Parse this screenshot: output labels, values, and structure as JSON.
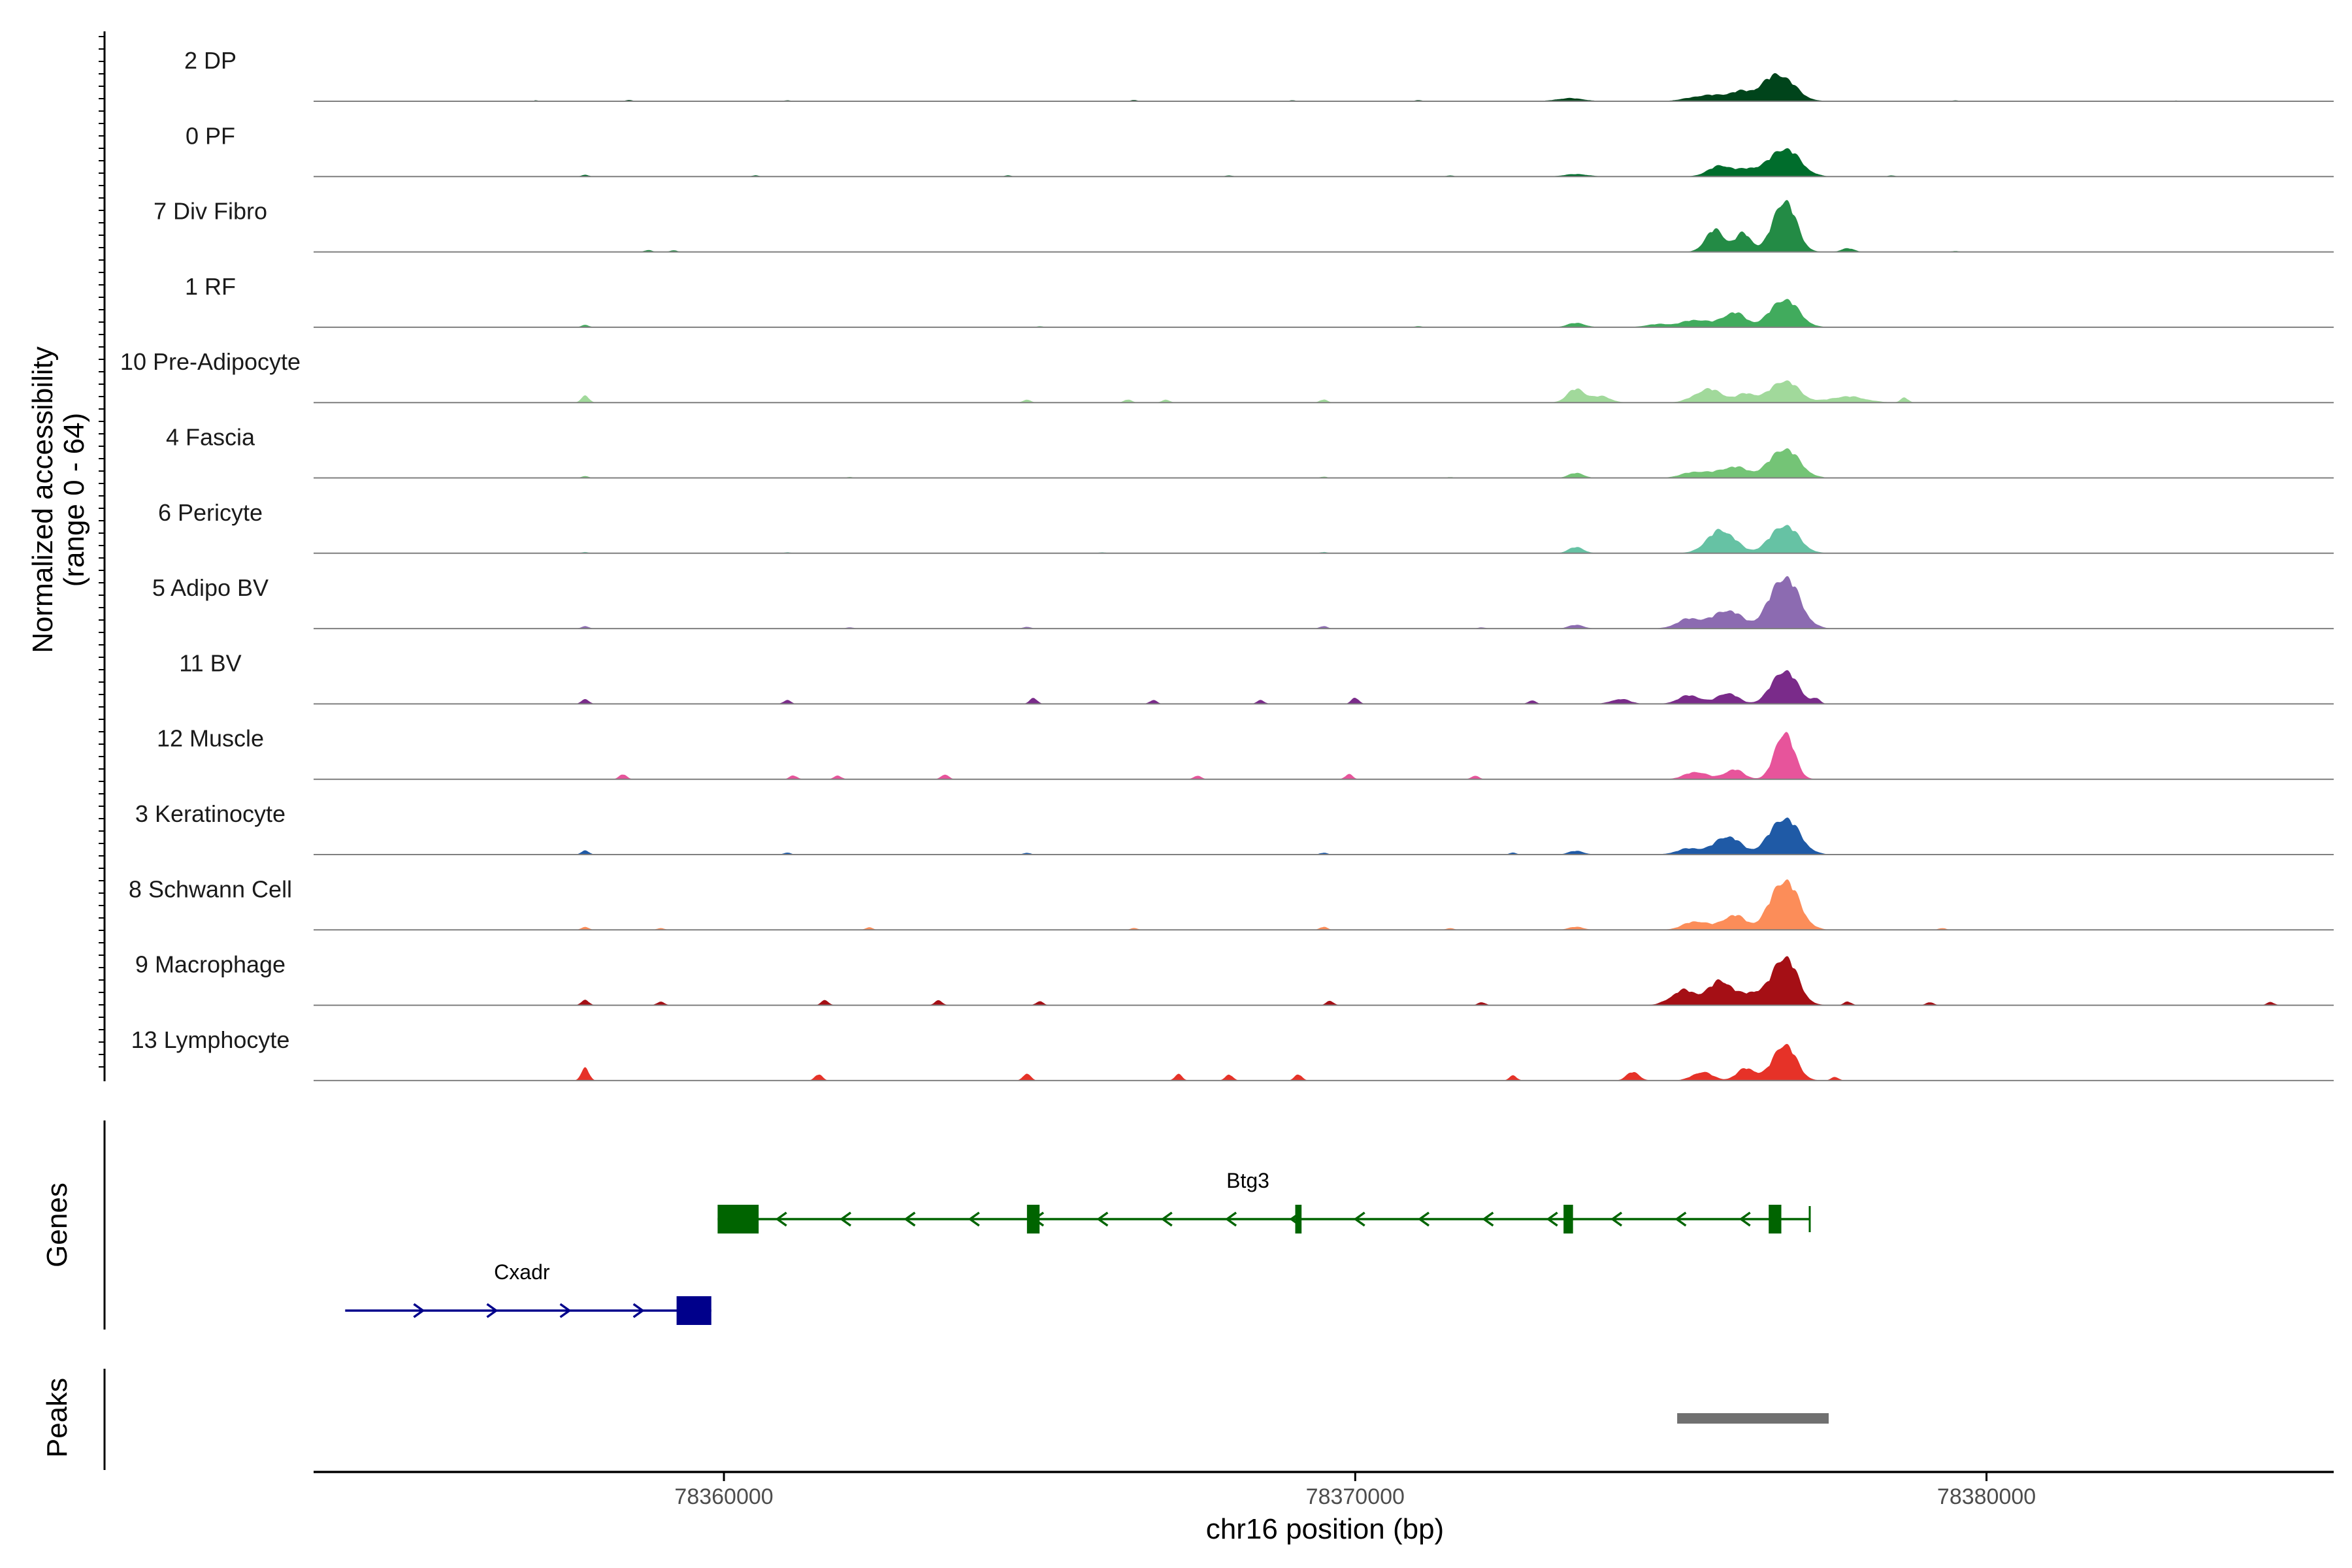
{
  "chart_data": {
    "type": "area",
    "title": "",
    "ylabel_line1": "Normalized accessibility",
    "ylabel_line2": "(range 0 - 64)",
    "ylim": [
      0,
      64
    ],
    "xlabel": "chr16 position (bp)",
    "xlim": [
      78353500,
      78385500
    ],
    "xticks": [
      {
        "value": 78360000,
        "label": "78360000"
      },
      {
        "value": 78370000,
        "label": "78370000"
      },
      {
        "value": 78380000,
        "label": "78380000"
      }
    ],
    "genes_label": "Genes",
    "peaks_label": "Peaks",
    "series": [
      {
        "name": "2 DP",
        "color": "#00441b",
        "peaks": [
          [
            78376700,
            44,
            250
          ],
          [
            78376100,
            12,
            180
          ],
          [
            78375600,
            10,
            300
          ],
          [
            78373400,
            5,
            220
          ]
        ],
        "noise": [
          [
            78357000,
            1.5
          ],
          [
            78358500,
            2
          ],
          [
            78361000,
            1.5
          ],
          [
            78366500,
            2
          ],
          [
            78369000,
            1.5
          ],
          [
            78371000,
            2
          ],
          [
            78379500,
            1.5
          ],
          [
            78383000,
            1.2
          ]
        ]
      },
      {
        "name": "0 PF",
        "color": "#006d2c",
        "peaks": [
          [
            78376800,
            46,
            240
          ],
          [
            78375800,
            18,
            200
          ],
          [
            78376250,
            10,
            150
          ],
          [
            78373500,
            4,
            200
          ]
        ],
        "noise": [
          [
            78357800,
            3
          ],
          [
            78360500,
            2
          ],
          [
            78364500,
            2
          ],
          [
            78368000,
            2
          ],
          [
            78371500,
            2
          ],
          [
            78378500,
            2
          ]
        ]
      },
      {
        "name": "7 Div Fibro",
        "color": "#238b45",
        "peaks": [
          [
            78376800,
            85,
            180
          ],
          [
            78375700,
            36,
            150
          ],
          [
            78376150,
            30,
            130
          ],
          [
            78377800,
            6,
            100
          ]
        ],
        "noise": [
          [
            78358800,
            3
          ],
          [
            78359200,
            2.5
          ],
          [
            78379500,
            1.5
          ]
        ]
      },
      {
        "name": "1 RF",
        "color": "#41ab5d",
        "peaks": [
          [
            78376800,
            46,
            220
          ],
          [
            78376000,
            24,
            180
          ],
          [
            78375400,
            12,
            220
          ],
          [
            78373500,
            7,
            140
          ],
          [
            78374800,
            5,
            200
          ]
        ],
        "noise": [
          [
            78357800,
            4
          ],
          [
            78365000,
            1.5
          ],
          [
            78371000,
            2
          ]
        ]
      },
      {
        "name": "10 Pre-Adipocyte",
        "color": "#a1d99b",
        "peaks": [
          [
            78376800,
            36,
            220
          ],
          [
            78373500,
            22,
            140
          ],
          [
            78375600,
            22,
            220
          ],
          [
            78377800,
            10,
            280
          ],
          [
            78376200,
            14,
            150
          ],
          [
            78373900,
            10,
            150
          ]
        ],
        "noise": [
          [
            78357800,
            12
          ],
          [
            78364800,
            5
          ],
          [
            78366400,
            5
          ],
          [
            78367000,
            5
          ],
          [
            78369500,
            5
          ],
          [
            78378700,
            8
          ]
        ]
      },
      {
        "name": "4 Fascia",
        "color": "#74c476",
        "peaks": [
          [
            78376800,
            48,
            230
          ],
          [
            78376000,
            18,
            220
          ],
          [
            78375400,
            10,
            220
          ],
          [
            78373500,
            8,
            120
          ]
        ],
        "noise": [
          [
            78357800,
            3
          ],
          [
            78362000,
            1.5
          ],
          [
            78369500,
            2
          ],
          [
            78371500,
            1.5
          ]
        ]
      },
      {
        "name": "6 Pericyte",
        "color": "#66c2a4",
        "peaks": [
          [
            78375800,
            38,
            220
          ],
          [
            78376800,
            46,
            220
          ],
          [
            78373500,
            10,
            120
          ]
        ],
        "noise": [
          [
            78357800,
            2
          ],
          [
            78361000,
            1.5
          ],
          [
            78366000,
            1.5
          ],
          [
            78369500,
            2
          ]
        ]
      },
      {
        "name": "5 Adipo BV",
        "color": "#8c6bb1",
        "peaks": [
          [
            78376800,
            85,
            230
          ],
          [
            78375900,
            30,
            220
          ],
          [
            78375300,
            16,
            200
          ],
          [
            78373500,
            6,
            120
          ]
        ],
        "noise": [
          [
            78357800,
            4
          ],
          [
            78362000,
            2
          ],
          [
            78364800,
            3
          ],
          [
            78369500,
            4
          ],
          [
            78372000,
            2
          ]
        ]
      },
      {
        "name": "11 BV",
        "color": "#7a2b8a",
        "peaks": [
          [
            78376800,
            55,
            200
          ],
          [
            78375900,
            18,
            160
          ],
          [
            78375300,
            14,
            180
          ],
          [
            78374200,
            8,
            150
          ]
        ],
        "noise": [
          [
            78357800,
            8
          ],
          [
            78361000,
            6
          ],
          [
            78364900,
            10
          ],
          [
            78366800,
            6
          ],
          [
            78368500,
            6
          ],
          [
            78370000,
            10
          ],
          [
            78372800,
            6
          ],
          [
            78377300,
            8
          ]
        ]
      },
      {
        "name": "12 Muscle",
        "color": "#e7549b",
        "peaks": [
          [
            78376800,
            78,
            150
          ],
          [
            78376000,
            16,
            150
          ],
          [
            78375400,
            12,
            180
          ]
        ],
        "noise": [
          [
            78358400,
            8
          ],
          [
            78361100,
            6
          ],
          [
            78361800,
            6
          ],
          [
            78363500,
            8
          ],
          [
            78367500,
            6
          ],
          [
            78369900,
            8
          ],
          [
            78371900,
            6
          ]
        ]
      },
      {
        "name": "3 Keratinocyte",
        "color": "#1f5aa6",
        "peaks": [
          [
            78376800,
            60,
            230
          ],
          [
            78375900,
            30,
            200
          ],
          [
            78375300,
            10,
            200
          ],
          [
            78373500,
            6,
            120
          ]
        ],
        "noise": [
          [
            78357800,
            7
          ],
          [
            78361000,
            3
          ],
          [
            78364800,
            3
          ],
          [
            78369500,
            3
          ],
          [
            78372500,
            3
          ]
        ]
      },
      {
        "name": "8 Schwann Cell",
        "color": "#fc8d59",
        "peaks": [
          [
            78376800,
            82,
            220
          ],
          [
            78376000,
            24,
            180
          ],
          [
            78375400,
            14,
            200
          ],
          [
            78373500,
            5,
            120
          ]
        ],
        "noise": [
          [
            78357800,
            5
          ],
          [
            78359000,
            3
          ],
          [
            78362300,
            4
          ],
          [
            78366500,
            3
          ],
          [
            78369500,
            5
          ],
          [
            78371500,
            3
          ],
          [
            78379300,
            3
          ]
        ]
      },
      {
        "name": "9 Macrophage",
        "color": "#a50f15",
        "peaks": [
          [
            78376800,
            80,
            200
          ],
          [
            78375800,
            40,
            200
          ],
          [
            78375200,
            24,
            200
          ],
          [
            78376300,
            18,
            150
          ]
        ],
        "noise": [
          [
            78357800,
            9
          ],
          [
            78359000,
            6
          ],
          [
            78361600,
            8
          ],
          [
            78363400,
            8
          ],
          [
            78365000,
            6
          ],
          [
            78369600,
            7
          ],
          [
            78372000,
            5
          ],
          [
            78377800,
            6
          ],
          [
            78379100,
            5
          ],
          [
            78384500,
            5
          ]
        ]
      },
      {
        "name": "13 Lymphocyte",
        "color": "#e63228",
        "peaks": [
          [
            78376800,
            60,
            180
          ],
          [
            78376200,
            20,
            150
          ],
          [
            78375500,
            14,
            160
          ],
          [
            78374400,
            14,
            100
          ]
        ],
        "noise": [
          [
            78357800,
            22
          ],
          [
            78361500,
            10
          ],
          [
            78364800,
            12
          ],
          [
            78367200,
            10
          ],
          [
            78368000,
            10
          ],
          [
            78369100,
            10
          ],
          [
            78372500,
            8
          ],
          [
            78377600,
            6
          ]
        ]
      }
    ],
    "genes": [
      {
        "name": "Btg3",
        "color": "#006400",
        "start": 78359900,
        "end": 78377200,
        "strand": "-",
        "row": 0,
        "label_pos": 78368300,
        "exons": [
          [
            78359900,
            78360550
          ],
          [
            78364800,
            78365000
          ],
          [
            78369050,
            78369150
          ],
          [
            78373300,
            78373450
          ],
          [
            78376550,
            78376750
          ]
        ]
      },
      {
        "name": "Cxadr",
        "color": "#00008b",
        "start": 78354000,
        "end": 78359800,
        "strand": "+",
        "row": 1,
        "label_pos": 78356800,
        "exons": [
          [
            78359250,
            78359800
          ]
        ]
      }
    ],
    "peaks_regions": [
      [
        78375100,
        78377500
      ]
    ],
    "peak_color": "#707070"
  }
}
